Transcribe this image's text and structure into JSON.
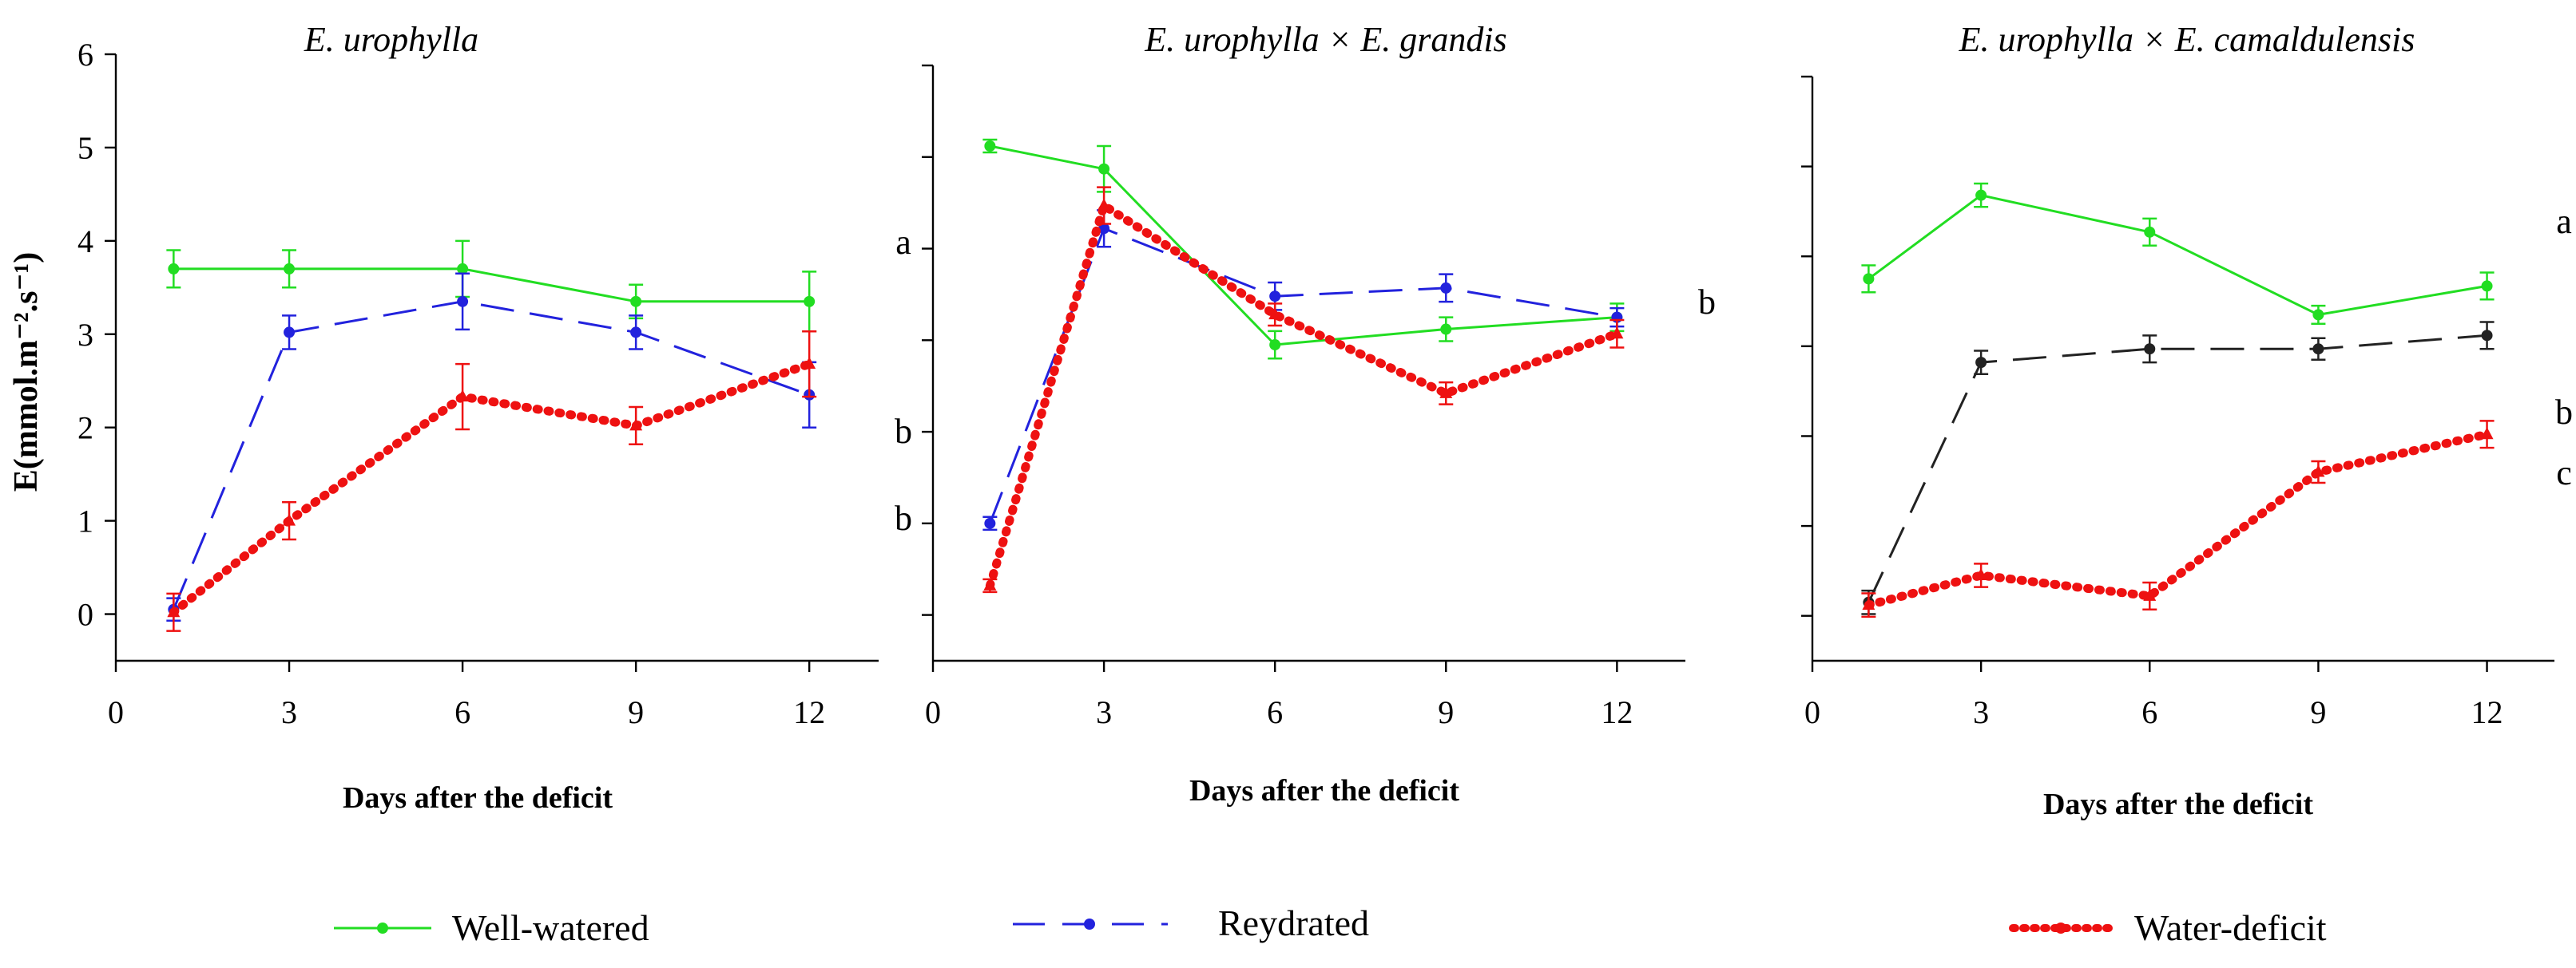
{
  "chart_data": [
    {
      "type": "line",
      "title": "E. urophylla",
      "xlabel": "Days after the deficit",
      "ylabel": "E(mmol.m⁻².s⁻¹)",
      "xlim": [
        0,
        13.2
      ],
      "ylim": [
        -0.5,
        6
      ],
      "xticks": [
        "0",
        "3",
        "6",
        "9",
        "12"
      ],
      "yticks": [
        "0",
        "1",
        "2",
        "3",
        "4",
        "5",
        "6"
      ],
      "x": [
        1,
        3,
        6,
        9,
        12
      ],
      "series": [
        {
          "name": "Well-watered",
          "values": [
            3.7,
            3.7,
            3.7,
            3.35,
            3.35
          ],
          "errors": [
            0.2,
            0.2,
            0.3,
            0.18,
            0.32
          ]
        },
        {
          "name": "Reydrated",
          "values": [
            0.05,
            3.02,
            3.35,
            3.02,
            2.35
          ],
          "errors": [
            0.12,
            0.18,
            0.3,
            0.18,
            0.35
          ]
        },
        {
          "name": "Water-deficit",
          "values": [
            0.02,
            1.0,
            2.33,
            2.02,
            2.68
          ],
          "errors": [
            0.2,
            0.2,
            0.35,
            0.2,
            0.35
          ]
        }
      ],
      "annotations": [
        "a",
        "b",
        "b"
      ]
    },
    {
      "type": "line",
      "title": "E. urophylla × E. grandis",
      "xlabel": "Days after the deficit",
      "ylabel": "",
      "xlim": [
        0,
        13.2
      ],
      "ylim": [
        -0.5,
        6
      ],
      "xticks": [
        "0",
        "3",
        "6",
        "9",
        "12"
      ],
      "yticks": [],
      "x": [
        1,
        3,
        6,
        9,
        12
      ],
      "series": [
        {
          "name": "Well-watered",
          "values": [
            5.12,
            4.87,
            2.95,
            3.12,
            3.25
          ],
          "errors": [
            0.07,
            0.25,
            0.15,
            0.13,
            0.15
          ]
        },
        {
          "name": "Reydrated",
          "values": [
            1.0,
            4.22,
            3.48,
            3.57,
            3.25
          ],
          "errors": [
            0.07,
            0.2,
            0.15,
            0.15,
            0.1
          ]
        },
        {
          "name": "Water-deficit",
          "values": [
            0.32,
            4.47,
            3.28,
            2.42,
            3.07
          ],
          "errors": [
            0.07,
            0.2,
            0.12,
            0.12,
            0.15
          ]
        }
      ],
      "annotations": [
        "b"
      ]
    },
    {
      "type": "line",
      "title": "E. urophylla × E. camaldulensis",
      "xlabel": "Days after the deficit",
      "ylabel": "",
      "xlim": [
        0,
        13.2
      ],
      "ylim": [
        -0.5,
        6
      ],
      "xticks": [
        "0",
        "3",
        "6",
        "9",
        "12"
      ],
      "yticks": [],
      "x": [
        1,
        3,
        6,
        9,
        12
      ],
      "series": [
        {
          "name": "Well-watered",
          "values": [
            3.75,
            4.68,
            4.27,
            3.35,
            3.67
          ],
          "errors": [
            0.15,
            0.13,
            0.15,
            0.1,
            0.15
          ]
        },
        {
          "name": "Reydrated",
          "values": [
            0.15,
            2.82,
            2.97,
            2.97,
            3.12
          ],
          "errors": [
            0.13,
            0.13,
            0.15,
            0.12,
            0.15
          ]
        },
        {
          "name": "Water-deficit",
          "values": [
            0.12,
            0.45,
            0.22,
            1.6,
            2.02
          ],
          "errors": [
            0.13,
            0.13,
            0.15,
            0.12,
            0.15
          ]
        }
      ],
      "annotations": [
        "a",
        "b",
        "c"
      ]
    }
  ],
  "legend": [
    {
      "name": "Well-watered"
    },
    {
      "name": "Reydrated"
    },
    {
      "name": "Water-deficit"
    }
  ],
  "colors": {
    "well": "#22dd22",
    "rey": "#2222dd",
    "rey_panel3": "#222222",
    "deficit": "#ee1111",
    "axis": "#000000"
  }
}
